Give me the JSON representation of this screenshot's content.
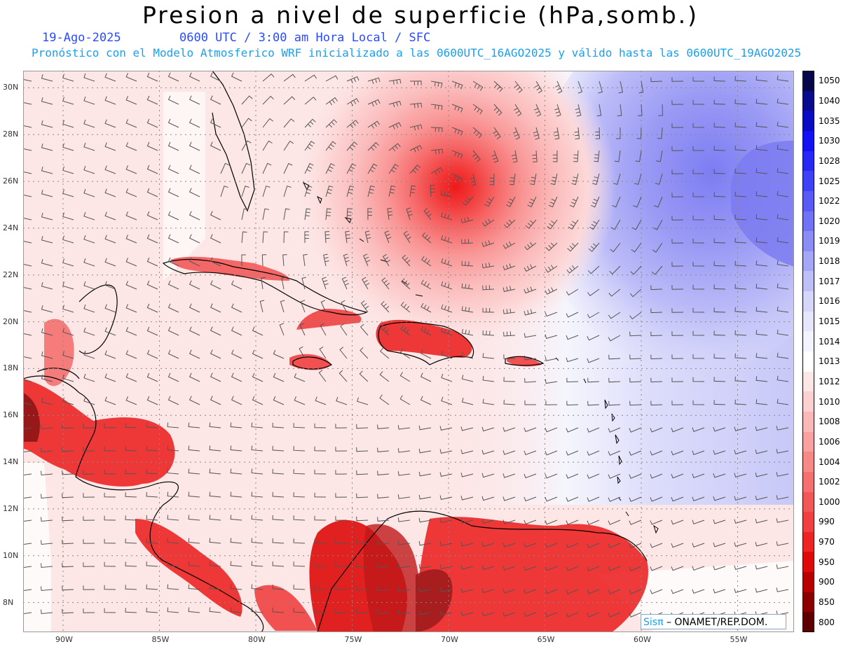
{
  "title": "Presion a nivel de superficie (hPa,somb.)",
  "date": "19-Ago-2025",
  "time_info": "0600 UTC / 3:00 am Hora Local / SFC",
  "forecast_info": "Pronóstico con el Modelo Atmosferico WRF inicializado a las 0600UTC_16AGO2025 y válido hasta las  0600UTC_19AGO2025",
  "credit": {
    "brand": "Sisπ",
    "text": " – ONAMET/REP.DOM."
  },
  "map": {
    "lon_range": [
      -92,
      -52
    ],
    "lat_range": [
      7,
      31
    ],
    "lat_ticks": [
      "30N",
      "28N",
      "26N",
      "24N",
      "22N",
      "20N",
      "18N",
      "16N",
      "14N",
      "12N",
      "10N",
      "8N"
    ],
    "lon_ticks": [
      "90W",
      "85W",
      "80W",
      "75W",
      "70W",
      "65W",
      "60W",
      "55W"
    ],
    "lat_values": [
      30,
      28,
      26,
      24,
      22,
      20,
      18,
      16,
      14,
      12,
      10,
      8
    ],
    "lon_values": [
      -90,
      -85,
      -80,
      -75,
      -70,
      -65,
      -60,
      -55
    ],
    "storm_center": {
      "lon": -69.9,
      "lat": 25.7
    }
  },
  "legend": {
    "labels": [
      "1050",
      "1040",
      "1035",
      "1030",
      "1028",
      "1025",
      "1022",
      "1020",
      "1019",
      "1018",
      "1017",
      "1016",
      "1015",
      "1014",
      "1013",
      "1012",
      "1010",
      "1008",
      "1006",
      "1004",
      "1002",
      "1000",
      "990",
      "970",
      "950",
      "900",
      "850",
      "800"
    ],
    "colors": [
      "#06064a",
      "#0a0a8c",
      "#0b0bc4",
      "#1212f2",
      "#2828f5",
      "#4040f4",
      "#5a5af4",
      "#7272f4",
      "#8c8cf5",
      "#a6a6f6",
      "#bfbff8",
      "#d6d6fa",
      "#e6e6fb",
      "#f3f3fd",
      "#ffffff",
      "#fde6e6",
      "#fcd0d0",
      "#fbb8b8",
      "#f9a0a0",
      "#f78888",
      "#f57070",
      "#f35858",
      "#f14040",
      "#ec2424",
      "#de0a0a",
      "#b80000",
      "#8c0000",
      "#5e0000"
    ]
  }
}
